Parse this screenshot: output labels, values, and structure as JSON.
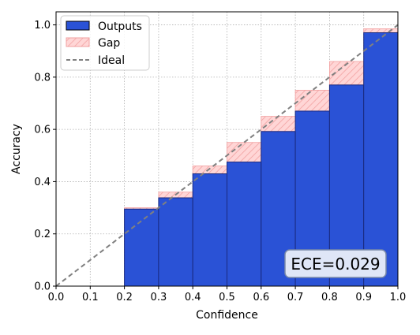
{
  "chart_data": {
    "type": "bar",
    "xlabel": "Confidence",
    "ylabel": "Accuracy",
    "xlim": [
      0.0,
      1.0
    ],
    "ylim": [
      0.0,
      1.05
    ],
    "x_ticks": [
      "0.0",
      "0.1",
      "0.2",
      "0.3",
      "0.4",
      "0.5",
      "0.6",
      "0.7",
      "0.8",
      "0.9",
      "1.0"
    ],
    "y_ticks": [
      "0.0",
      "0.2",
      "0.4",
      "0.6",
      "0.8",
      "1.0"
    ],
    "grid": true,
    "legend_position": "top-left",
    "bins": [
      {
        "x0": 0.2,
        "x1": 0.3,
        "output": 0.295,
        "expected": 0.3
      },
      {
        "x0": 0.3,
        "x1": 0.4,
        "output": 0.338,
        "expected": 0.36
      },
      {
        "x0": 0.4,
        "x1": 0.5,
        "output": 0.43,
        "expected": 0.46
      },
      {
        "x0": 0.5,
        "x1": 0.6,
        "output": 0.475,
        "expected": 0.55
      },
      {
        "x0": 0.6,
        "x1": 0.7,
        "output": 0.592,
        "expected": 0.65
      },
      {
        "x0": 0.7,
        "x1": 0.8,
        "output": 0.67,
        "expected": 0.75
      },
      {
        "x0": 0.8,
        "x1": 0.9,
        "output": 0.77,
        "expected": 0.86
      },
      {
        "x0": 0.9,
        "x1": 1.0,
        "output": 0.97,
        "expected": 0.985
      }
    ],
    "series": [
      {
        "name": "Outputs",
        "color": "#2a52d6"
      },
      {
        "name": "Gap",
        "color": "#ffc0c0"
      },
      {
        "name": "Ideal",
        "color": "#808080"
      }
    ],
    "annotation": "ECE=0.029"
  }
}
